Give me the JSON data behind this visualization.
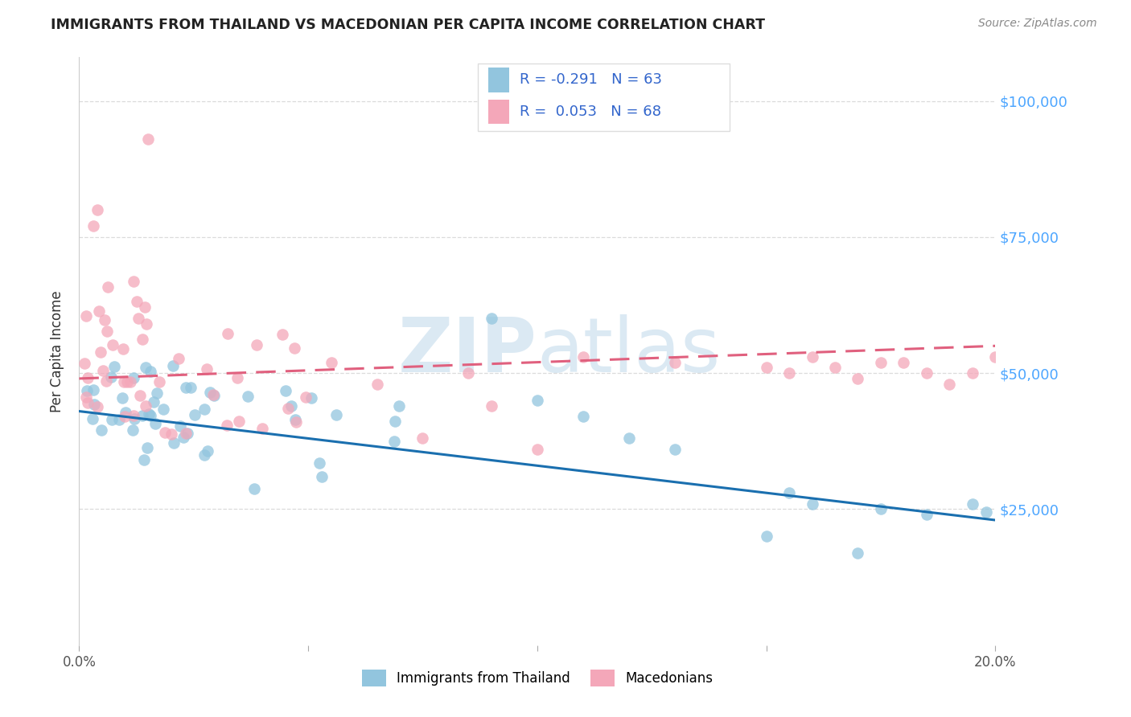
{
  "title": "IMMIGRANTS FROM THAILAND VS MACEDONIAN PER CAPITA INCOME CORRELATION CHART",
  "source": "Source: ZipAtlas.com",
  "ylabel": "Per Capita Income",
  "watermark": "ZIPatlas",
  "legend_label_blue": "Immigrants from Thailand",
  "legend_label_pink": "Macedonians",
  "yticks": [
    25000,
    50000,
    75000,
    100000
  ],
  "ytick_labels": [
    "$25,000",
    "$50,000",
    "$75,000",
    "$100,000"
  ],
  "blue_color": "#92c5de",
  "pink_color": "#f4a7b9",
  "blue_line_color": "#1a6faf",
  "pink_line_color": "#e0607e",
  "background_color": "#ffffff",
  "xmin": 0.0,
  "xmax": 0.2,
  "ymin": 0,
  "ymax": 108000,
  "blue_trend_x": [
    0.0,
    0.2
  ],
  "blue_trend_y": [
    43000,
    23000
  ],
  "pink_trend_x": [
    0.0,
    0.2
  ],
  "pink_trend_y": [
    49000,
    55000
  ],
  "legend_text_color": "#3366cc",
  "watermark_color": "#b8d4e8",
  "grid_color": "#cccccc",
  "right_tick_color": "#4da6ff"
}
